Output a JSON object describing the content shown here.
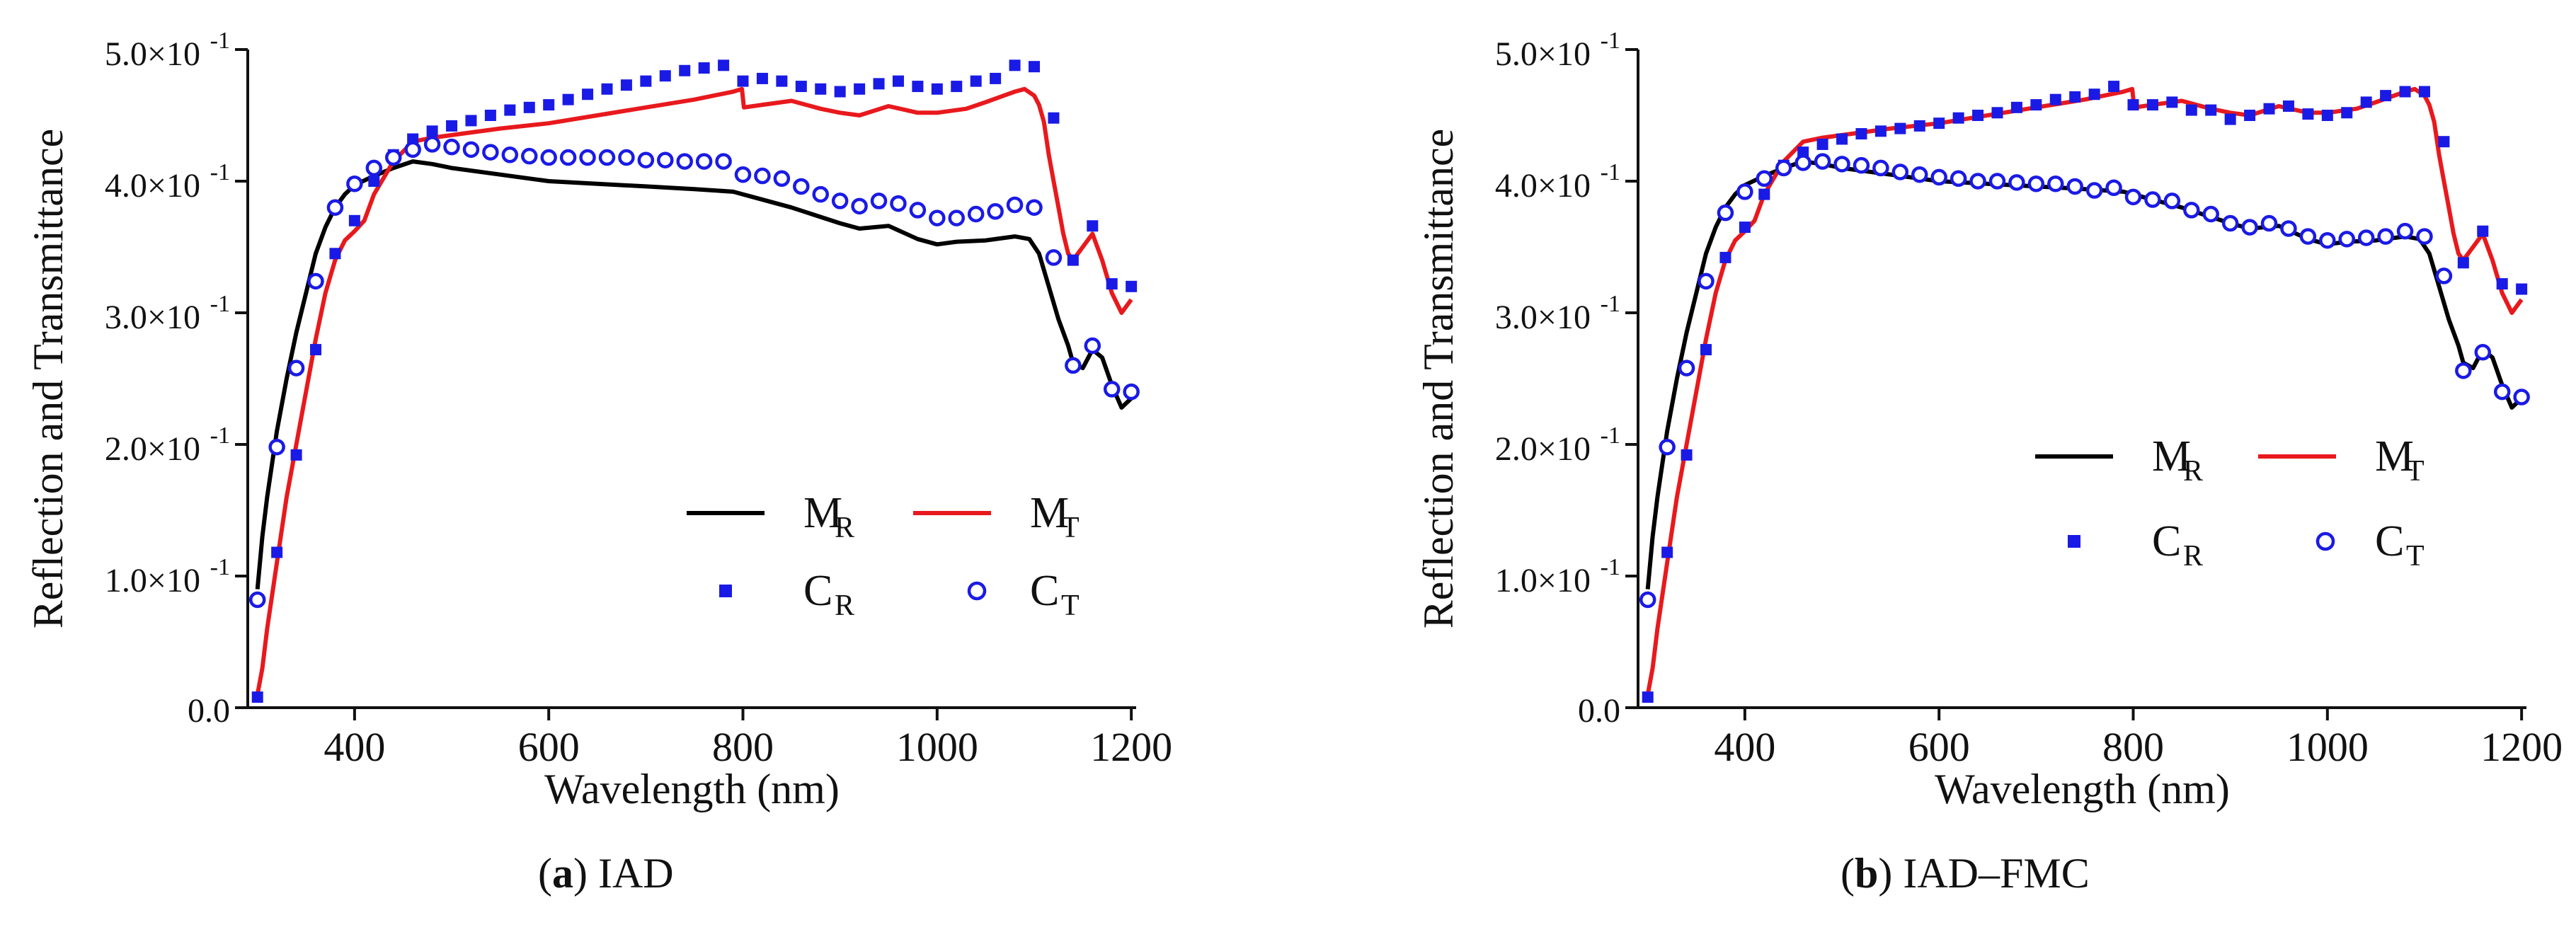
{
  "figure": {
    "captions": [
      {
        "letter": "a",
        "text": "IAD"
      },
      {
        "letter": "b",
        "text": "IAD–FMC"
      }
    ]
  },
  "colors": {
    "MR": "#000000",
    "MT": "#e8191d",
    "CR": "#1a1ae6",
    "CT": "#1a1ae6"
  },
  "chart_data": [
    {
      "type": "line",
      "title": "IAD",
      "xlabel": "Wavelength (nm)",
      "ylabel": "Reflection and Transmittance",
      "xlim": [
        290,
        1205
      ],
      "ylim": [
        0,
        0.5
      ],
      "x_ticks": [
        400,
        600,
        800,
        1000,
        1200
      ],
      "y_ticks": [
        0,
        0.1,
        0.2,
        0.3,
        0.4,
        0.5
      ],
      "y_tick_labels": [
        "0.0",
        "1.0×10",
        "2.0×10",
        "3.0×10",
        "4.0×10",
        "5.0×10"
      ],
      "y_tick_exp": "-1",
      "legend": [
        {
          "key": "MR",
          "base": "M",
          "sub": "R",
          "kind": "line"
        },
        {
          "key": "MT",
          "base": "M",
          "sub": "T",
          "kind": "line"
        },
        {
          "key": "CR",
          "base": "C",
          "sub": "R",
          "kind": "square"
        },
        {
          "key": "CT",
          "base": "C",
          "sub": "T",
          "kind": "circle"
        }
      ],
      "series": [
        {
          "name": "M_R",
          "key": "MR",
          "kind": "line",
          "x": [
            300,
            305,
            310,
            320,
            330,
            340,
            350,
            360,
            370,
            380,
            390,
            400,
            420,
            440,
            460,
            480,
            500,
            550,
            600,
            650,
            700,
            750,
            790,
            800,
            810,
            850,
            900,
            920,
            950,
            980,
            1000,
            1020,
            1050,
            1080,
            1095,
            1105,
            1115,
            1125,
            1135,
            1140,
            1150,
            1160,
            1170,
            1180,
            1190,
            1200
          ],
          "y": [
            0.09,
            0.13,
            0.16,
            0.21,
            0.25,
            0.285,
            0.315,
            0.345,
            0.365,
            0.38,
            0.39,
            0.397,
            0.404,
            0.41,
            0.415,
            0.413,
            0.41,
            0.405,
            0.4,
            0.398,
            0.396,
            0.394,
            0.392,
            0.39,
            0.388,
            0.38,
            0.368,
            0.364,
            0.366,
            0.356,
            0.352,
            0.354,
            0.355,
            0.358,
            0.356,
            0.345,
            0.32,
            0.295,
            0.275,
            0.262,
            0.258,
            0.272,
            0.266,
            0.245,
            0.228,
            0.235
          ]
        },
        {
          "name": "M_T",
          "key": "MT",
          "kind": "line",
          "x": [
            300,
            305,
            310,
            320,
            330,
            340,
            350,
            360,
            370,
            380,
            390,
            400,
            410,
            420,
            440,
            460,
            480,
            500,
            550,
            600,
            650,
            700,
            750,
            790,
            799,
            801,
            820,
            850,
            880,
            900,
            920,
            950,
            980,
            1000,
            1030,
            1050,
            1080,
            1090,
            1100,
            1105,
            1110,
            1115,
            1120,
            1125,
            1130,
            1135,
            1140,
            1150,
            1160,
            1170,
            1180,
            1190,
            1200
          ],
          "y": [
            0.01,
            0.03,
            0.06,
            0.11,
            0.16,
            0.2,
            0.24,
            0.28,
            0.315,
            0.34,
            0.355,
            0.362,
            0.37,
            0.39,
            0.415,
            0.43,
            0.433,
            0.435,
            0.44,
            0.444,
            0.45,
            0.456,
            0.462,
            0.468,
            0.47,
            0.456,
            0.458,
            0.461,
            0.455,
            0.452,
            0.45,
            0.457,
            0.452,
            0.452,
            0.455,
            0.46,
            0.468,
            0.47,
            0.465,
            0.458,
            0.445,
            0.42,
            0.4,
            0.38,
            0.36,
            0.345,
            0.34,
            0.35,
            0.36,
            0.34,
            0.315,
            0.3,
            0.31
          ]
        },
        {
          "name": "C_R",
          "key": "CR",
          "kind": "square",
          "x": [
            300,
            320,
            340,
            360,
            380,
            400,
            420,
            440,
            460,
            480,
            500,
            520,
            540,
            560,
            580,
            600,
            620,
            640,
            660,
            680,
            700,
            720,
            740,
            760,
            780,
            800,
            820,
            840,
            860,
            880,
            900,
            920,
            940,
            960,
            980,
            1000,
            1020,
            1040,
            1060,
            1080,
            1100,
            1120,
            1140,
            1160,
            1180,
            1200
          ],
          "y": [
            0.008,
            0.118,
            0.192,
            0.272,
            0.345,
            0.37,
            0.4,
            0.42,
            0.432,
            0.438,
            0.442,
            0.446,
            0.45,
            0.454,
            0.456,
            0.458,
            0.462,
            0.466,
            0.47,
            0.473,
            0.476,
            0.48,
            0.484,
            0.486,
            0.488,
            0.476,
            0.478,
            0.476,
            0.472,
            0.47,
            0.468,
            0.47,
            0.474,
            0.476,
            0.472,
            0.47,
            0.472,
            0.476,
            0.478,
            0.488,
            0.487,
            0.448,
            0.34,
            0.366,
            0.322,
            0.32
          ]
        },
        {
          "name": "C_T",
          "key": "CT",
          "kind": "circle",
          "x": [
            300,
            320,
            340,
            360,
            380,
            400,
            420,
            440,
            460,
            480,
            500,
            520,
            540,
            560,
            580,
            600,
            620,
            640,
            660,
            680,
            700,
            720,
            740,
            760,
            780,
            800,
            820,
            840,
            860,
            880,
            900,
            920,
            940,
            960,
            980,
            1000,
            1020,
            1040,
            1060,
            1080,
            1100,
            1120,
            1140,
            1160,
            1180,
            1200
          ],
          "y": [
            0.082,
            0.198,
            0.258,
            0.324,
            0.38,
            0.398,
            0.41,
            0.418,
            0.424,
            0.428,
            0.426,
            0.424,
            0.422,
            0.42,
            0.419,
            0.418,
            0.418,
            0.418,
            0.418,
            0.418,
            0.416,
            0.416,
            0.415,
            0.415,
            0.415,
            0.405,
            0.404,
            0.402,
            0.396,
            0.39,
            0.385,
            0.381,
            0.385,
            0.383,
            0.378,
            0.372,
            0.372,
            0.375,
            0.377,
            0.382,
            0.38,
            0.342,
            0.26,
            0.275,
            0.242,
            0.24
          ]
        }
      ]
    },
    {
      "type": "line",
      "title": "IAD–FMC",
      "xlabel": "Wavelength (nm)",
      "ylabel": "Reflection and Transmittance",
      "xlim": [
        290,
        1205
      ],
      "ylim": [
        0,
        0.5
      ],
      "x_ticks": [
        400,
        600,
        800,
        1000,
        1200
      ],
      "y_ticks": [
        0,
        0.1,
        0.2,
        0.3,
        0.4,
        0.5
      ],
      "y_tick_labels": [
        "0.0",
        "1.0×10",
        "2.0×10",
        "3.0×10",
        "4.0×10",
        "5.0×10"
      ],
      "y_tick_exp": "-1",
      "legend": [
        {
          "key": "MR",
          "base": "M",
          "sub": "R",
          "kind": "line"
        },
        {
          "key": "MT",
          "base": "M",
          "sub": "T",
          "kind": "line"
        },
        {
          "key": "CR",
          "base": "C",
          "sub": "R",
          "kind": "square"
        },
        {
          "key": "CT",
          "base": "C",
          "sub": "T",
          "kind": "circle"
        }
      ],
      "series": [
        {
          "name": "M_R",
          "key": "MR",
          "kind": "line",
          "x": [
            300,
            305,
            310,
            320,
            330,
            340,
            350,
            360,
            370,
            380,
            390,
            400,
            420,
            440,
            460,
            480,
            500,
            550,
            600,
            650,
            700,
            750,
            790,
            800,
            810,
            850,
            900,
            920,
            950,
            980,
            1000,
            1020,
            1050,
            1080,
            1095,
            1105,
            1115,
            1125,
            1135,
            1140,
            1150,
            1160,
            1170,
            1180,
            1190,
            1200
          ],
          "y": [
            0.09,
            0.13,
            0.16,
            0.21,
            0.25,
            0.285,
            0.315,
            0.345,
            0.365,
            0.38,
            0.39,
            0.397,
            0.404,
            0.41,
            0.415,
            0.413,
            0.41,
            0.405,
            0.4,
            0.398,
            0.396,
            0.394,
            0.392,
            0.39,
            0.388,
            0.38,
            0.368,
            0.364,
            0.366,
            0.356,
            0.352,
            0.354,
            0.355,
            0.358,
            0.356,
            0.345,
            0.32,
            0.295,
            0.275,
            0.262,
            0.258,
            0.272,
            0.266,
            0.245,
            0.228,
            0.235
          ]
        },
        {
          "name": "M_T",
          "key": "MT",
          "kind": "line",
          "x": [
            300,
            305,
            310,
            320,
            330,
            340,
            350,
            360,
            370,
            380,
            390,
            400,
            410,
            420,
            440,
            460,
            480,
            500,
            550,
            600,
            650,
            700,
            750,
            790,
            799,
            801,
            820,
            850,
            880,
            900,
            920,
            950,
            980,
            1000,
            1030,
            1050,
            1080,
            1090,
            1100,
            1105,
            1110,
            1115,
            1120,
            1125,
            1130,
            1135,
            1140,
            1150,
            1160,
            1170,
            1180,
            1190,
            1200
          ],
          "y": [
            0.01,
            0.03,
            0.06,
            0.11,
            0.16,
            0.2,
            0.24,
            0.28,
            0.315,
            0.34,
            0.355,
            0.362,
            0.37,
            0.39,
            0.415,
            0.43,
            0.433,
            0.435,
            0.44,
            0.444,
            0.45,
            0.456,
            0.462,
            0.468,
            0.47,
            0.456,
            0.458,
            0.461,
            0.455,
            0.452,
            0.45,
            0.457,
            0.452,
            0.452,
            0.455,
            0.46,
            0.468,
            0.47,
            0.465,
            0.458,
            0.445,
            0.42,
            0.4,
            0.38,
            0.36,
            0.345,
            0.34,
            0.35,
            0.36,
            0.34,
            0.315,
            0.3,
            0.31
          ]
        },
        {
          "name": "C_R",
          "key": "CR",
          "kind": "square",
          "x": [
            300,
            320,
            340,
            360,
            380,
            400,
            420,
            440,
            460,
            480,
            500,
            520,
            540,
            560,
            580,
            600,
            620,
            640,
            660,
            680,
            700,
            720,
            740,
            760,
            780,
            800,
            820,
            840,
            860,
            880,
            900,
            920,
            940,
            960,
            980,
            1000,
            1020,
            1040,
            1060,
            1080,
            1100,
            1120,
            1140,
            1160,
            1180,
            1200
          ],
          "y": [
            0.008,
            0.118,
            0.192,
            0.272,
            0.342,
            0.365,
            0.39,
            0.412,
            0.422,
            0.428,
            0.432,
            0.436,
            0.438,
            0.44,
            0.442,
            0.444,
            0.448,
            0.45,
            0.452,
            0.456,
            0.458,
            0.462,
            0.464,
            0.466,
            0.472,
            0.458,
            0.458,
            0.46,
            0.454,
            0.454,
            0.447,
            0.45,
            0.455,
            0.457,
            0.451,
            0.45,
            0.452,
            0.46,
            0.465,
            0.468,
            0.468,
            0.43,
            0.338,
            0.362,
            0.322,
            0.318
          ]
        },
        {
          "name": "C_T",
          "key": "CT",
          "kind": "circle",
          "x": [
            300,
            320,
            340,
            360,
            380,
            400,
            420,
            440,
            460,
            480,
            500,
            520,
            540,
            560,
            580,
            600,
            620,
            640,
            660,
            680,
            700,
            720,
            740,
            760,
            780,
            800,
            820,
            840,
            860,
            880,
            900,
            920,
            940,
            960,
            980,
            1000,
            1020,
            1040,
            1060,
            1080,
            1100,
            1120,
            1140,
            1160,
            1180,
            1200
          ],
          "y": [
            0.082,
            0.198,
            0.258,
            0.324,
            0.376,
            0.392,
            0.402,
            0.41,
            0.414,
            0.415,
            0.413,
            0.412,
            0.41,
            0.407,
            0.405,
            0.403,
            0.402,
            0.4,
            0.4,
            0.399,
            0.398,
            0.398,
            0.396,
            0.393,
            0.395,
            0.388,
            0.386,
            0.385,
            0.378,
            0.375,
            0.368,
            0.365,
            0.368,
            0.364,
            0.358,
            0.355,
            0.356,
            0.357,
            0.358,
            0.362,
            0.358,
            0.328,
            0.256,
            0.27,
            0.24,
            0.236
          ]
        }
      ]
    }
  ]
}
